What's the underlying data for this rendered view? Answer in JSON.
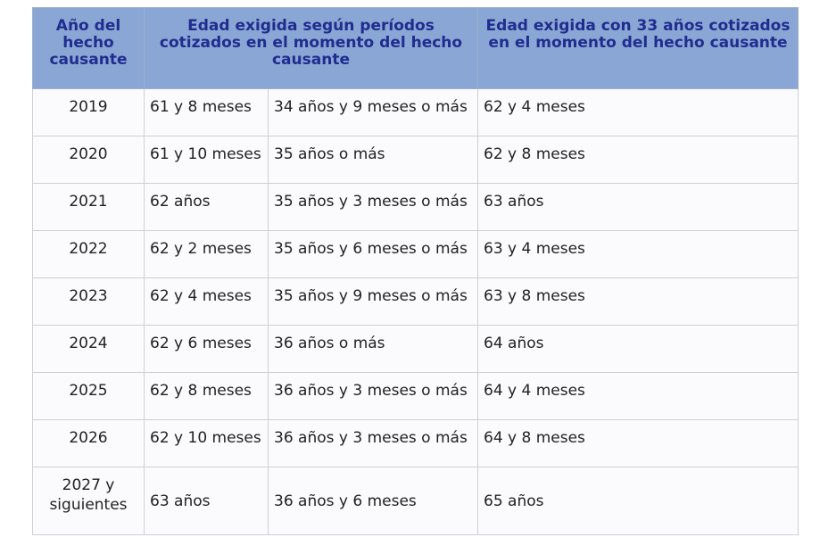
{
  "table": {
    "headers": {
      "year": "Año del hecho causante",
      "by_period": "Edad exigida según períodos cotizados en el momento del hecho causante",
      "with_33": "Edad exigida con 33 años cotizados en el momento del hecho causante"
    },
    "rows": [
      {
        "year": "2019",
        "age": "61 y 8 meses",
        "period": "34 años y 9 meses o más",
        "age_33": "62 y 4 meses"
      },
      {
        "year": "2020",
        "age": "61 y 10 meses",
        "period": "35 años o más",
        "age_33": "62 y 8 meses"
      },
      {
        "year": "2021",
        "age": "62 años",
        "period": "35 años y 3 meses o más",
        "age_33": "63 años"
      },
      {
        "year": "2022",
        "age": "62 y 2 meses",
        "period": "35 años y 6 meses o más",
        "age_33": "63 y 4 meses"
      },
      {
        "year": "2023",
        "age": "62 y 4 meses",
        "period": "35 años y 9 meses o más",
        "age_33": "63 y 8 meses"
      },
      {
        "year": "2024",
        "age": "62 y 6 meses",
        "period": "36 años o más",
        "age_33": "64 años"
      },
      {
        "year": "2025",
        "age": "62 y 8 meses",
        "period": "36 años y 3 meses o más",
        "age_33": "64 y 4 meses"
      },
      {
        "year": "2026",
        "age": "62 y 10 meses",
        "period": "36 años y 3 meses o más",
        "age_33": "64 y 8 meses"
      },
      {
        "year": "2027 y siguientes",
        "age": "63 años",
        "period": "36 años y 6 meses",
        "age_33": "65 años"
      }
    ]
  },
  "colors": {
    "header_bg": "#8aa6d4",
    "header_text": "#1f2d8f",
    "cell_bg": "#fbfbfe",
    "grid": "#d0d0d0"
  }
}
